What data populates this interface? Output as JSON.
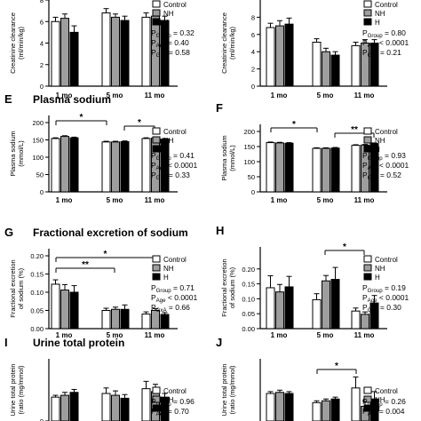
{
  "chart_data": [
    {
      "type": "bar",
      "panel": "",
      "title": "",
      "ylabel": "Creatinine clearance\n(ml/min/kg)",
      "ylim": [
        0,
        8
      ],
      "yticks": [
        0,
        2,
        4,
        6,
        8
      ],
      "categories": [
        "1 mo",
        "5 mo",
        "11 mo"
      ],
      "series": [
        {
          "name": "Control",
          "values": [
            6.0,
            6.8,
            6.4
          ],
          "errors": [
            0.4,
            0.4,
            0.4
          ]
        },
        {
          "name": "NH",
          "values": [
            6.3,
            6.4,
            6.5
          ],
          "errors": [
            0.4,
            0.3,
            0.4
          ]
        },
        {
          "name": "H",
          "values": [
            5.0,
            6.1,
            6.1
          ],
          "errors": [
            0.6,
            0.4,
            0.4
          ]
        }
      ],
      "stats": [
        "P_Group = 0.32",
        "P_Age = 0.40",
        "P_GxA = 0.58"
      ],
      "significance": []
    },
    {
      "type": "bar",
      "panel": "",
      "title": "",
      "ylabel": "Creatinine clearance\n(ml/min/kg)",
      "ylim": [
        0,
        10
      ],
      "yticks": [
        0,
        2,
        4,
        6,
        8
      ],
      "categories": [
        "1 mo",
        "5 mo",
        "11 mo"
      ],
      "series": [
        {
          "name": "Control",
          "values": [
            6.8,
            5.1,
            4.7
          ],
          "errors": [
            0.5,
            0.4,
            0.4
          ]
        },
        {
          "name": "NH",
          "values": [
            7.0,
            4.0,
            5.0
          ],
          "errors": [
            0.6,
            0.4,
            0.4
          ]
        },
        {
          "name": "H",
          "values": [
            7.2,
            3.6,
            5.0
          ],
          "errors": [
            0.7,
            0.4,
            0.4
          ]
        }
      ],
      "stats": [
        "P_Group = 0.80",
        "P_Age < 0.0001",
        "P_GxA = 0.21"
      ],
      "significance": []
    },
    {
      "type": "bar",
      "panel": "E",
      "title": "Plasma sodium",
      "ylabel": "Plasma sodium\n(mmol/L)",
      "ylim": [
        0,
        200
      ],
      "yticks": [
        0,
        50,
        100,
        150,
        200
      ],
      "categories": [
        "1 mo",
        "5 mo",
        "11 mo"
      ],
      "series": [
        {
          "name": "Control",
          "values": [
            154,
            144,
            154
          ],
          "errors": [
            2,
            2,
            2
          ]
        },
        {
          "name": "NH",
          "values": [
            160,
            144,
            155
          ],
          "errors": [
            2,
            2,
            2
          ]
        },
        {
          "name": "H",
          "values": [
            156,
            145,
            152
          ],
          "errors": [
            2,
            2,
            2
          ]
        }
      ],
      "stats": [
        "P_Group = 0.41",
        "P_Age < 0.0001",
        "P_GxA = 0.33"
      ],
      "significance": [
        "*",
        "*"
      ]
    },
    {
      "type": "bar",
      "panel": "F",
      "title": "",
      "ylabel": "Plasma sodium\n(mmol/L)",
      "ylim": [
        0,
        200
      ],
      "yticks": [
        0,
        50,
        100,
        150,
        200
      ],
      "categories": [
        "1 mo",
        "5 mo",
        "11 mo"
      ],
      "series": [
        {
          "name": "Control",
          "values": [
            163,
            144,
            154
          ],
          "errors": [
            2,
            2,
            2
          ]
        },
        {
          "name": "NH",
          "values": [
            162,
            144,
            155
          ],
          "errors": [
            2,
            2,
            2
          ]
        },
        {
          "name": "H",
          "values": [
            161,
            145,
            160
          ],
          "errors": [
            2,
            2,
            2
          ]
        }
      ],
      "stats": [
        "P_Group = 0.93",
        "P_Age < 0.0001",
        "P_GxA = 0.52"
      ],
      "significance": [
        "*",
        "**"
      ]
    },
    {
      "type": "bar",
      "panel": "G",
      "title": "Fractional excretion of sodium",
      "ylabel": "Fractional excretion\nof sodium (%)",
      "ylim": [
        0,
        0.2
      ],
      "yticks": [
        0.0,
        0.05,
        0.1,
        0.15,
        0.2
      ],
      "categories": [
        "1 mo",
        "5 mo",
        "11 mo"
      ],
      "series": [
        {
          "name": "Control",
          "values": [
            0.122,
            0.05,
            0.04
          ],
          "errors": [
            0.012,
            0.006,
            0.006
          ]
        },
        {
          "name": "NH",
          "values": [
            0.106,
            0.053,
            0.05
          ],
          "errors": [
            0.015,
            0.006,
            0.005
          ]
        },
        {
          "name": "H",
          "values": [
            0.1,
            0.053,
            0.039
          ],
          "errors": [
            0.018,
            0.012,
            0.005
          ]
        }
      ],
      "stats": [
        "P_Group = 0.71",
        "P_Age < 0.0001",
        "P_GxA = 0.66"
      ],
      "significance": [
        "*",
        "**"
      ]
    },
    {
      "type": "bar",
      "panel": "H",
      "title": "",
      "ylabel": "Fractional excretion\nof sodium (%)",
      "ylim": [
        0,
        0.25
      ],
      "yticks": [
        0.0,
        0.05,
        0.1,
        0.15,
        0.2
      ],
      "categories": [
        "1 mo",
        "5 mo",
        "11 mo"
      ],
      "series": [
        {
          "name": "Control",
          "values": [
            0.137,
            0.097,
            0.059
          ],
          "errors": [
            0.04,
            0.02,
            0.01
          ]
        },
        {
          "name": "NH",
          "values": [
            0.123,
            0.16,
            0.048
          ],
          "errors": [
            0.025,
            0.018,
            0.008
          ]
        },
        {
          "name": "H",
          "values": [
            0.14,
            0.165,
            0.086
          ],
          "errors": [
            0.035,
            0.04,
            0.025
          ]
        }
      ],
      "stats": [
        "P_Group = 0.19",
        "P_Age < 0.0001",
        "P_GxA = 0.30"
      ],
      "significance": [
        "*"
      ]
    },
    {
      "type": "bar",
      "panel": "I",
      "title": "Urine total protein",
      "ylabel": "Urine total protein\n(ratio (mg/mmol)",
      "ylim": [
        0,
        150
      ],
      "yticks": [
        0
      ],
      "categories": [
        "1 mo",
        "5 mo",
        "11 mo"
      ],
      "series": [
        {
          "name": "Control",
          "values": [
            65,
            75,
            88
          ],
          "errors": [
            5,
            15,
            20
          ]
        },
        {
          "name": "NH",
          "values": [
            70,
            70,
            80
          ],
          "errors": [
            8,
            12,
            20
          ]
        },
        {
          "name": "H",
          "values": [
            78,
            62,
            65
          ],
          "errors": [
            8,
            10,
            10
          ]
        }
      ],
      "stats": [
        "P_Group = 0.96",
        "P_Age = 0.70"
      ],
      "significance": []
    },
    {
      "type": "bar",
      "panel": "J",
      "title": "",
      "ylabel": "Urine total protein\n(ratio (mg/mmol)",
      "ylim": [
        0,
        150
      ],
      "yticks": [],
      "categories": [
        "1 mo",
        "5 mo",
        "11 mo"
      ],
      "series": [
        {
          "name": "Control",
          "values": [
            75,
            50,
            90
          ],
          "errors": [
            5,
            5,
            30
          ]
        },
        {
          "name": "NH",
          "values": [
            78,
            55,
            40
          ],
          "errors": [
            6,
            5,
            15
          ]
        },
        {
          "name": "H",
          "values": [
            75,
            60,
            60
          ],
          "errors": [
            5,
            5,
            20
          ]
        }
      ],
      "stats": [
        "P_Group = 0.26",
        "P_Age = 0.004"
      ],
      "significance": [
        "*"
      ]
    }
  ],
  "colors": {
    "Control": "#ffffff",
    "NH": "#9e9e9e",
    "H": "#000000"
  },
  "legend_position": "right"
}
